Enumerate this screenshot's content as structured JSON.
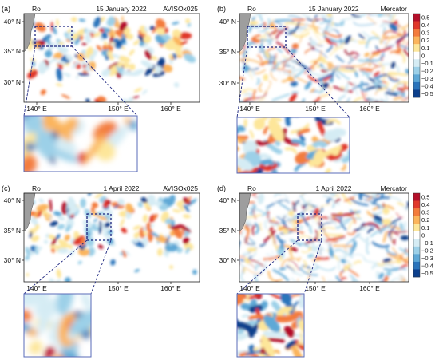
{
  "panels": [
    {
      "letter": "(a)",
      "variable": "Ro",
      "date": "15 January 2022",
      "source": "AVISOx025",
      "lat_labels": [
        "40° N",
        "35° N",
        "30° N"
      ],
      "lon_labels": [
        "140° E",
        "150° E",
        "160° E"
      ]
    },
    {
      "letter": "(b)",
      "variable": "Ro",
      "date": "15 January 2022",
      "source": "Mercator",
      "lat_labels": [
        "40° N",
        "35° N",
        "30° N"
      ],
      "lon_labels": [
        "140° E",
        "150° E",
        "160° E"
      ]
    },
    {
      "letter": "(c)",
      "variable": "Ro",
      "date": "1 April 2022",
      "source": "AVISOx025",
      "lat_labels": [
        "40° N",
        "35° N",
        "30° N"
      ],
      "lon_labels": [
        "140° E",
        "150° E",
        "160° E"
      ]
    },
    {
      "letter": "(d)",
      "variable": "Ro",
      "date": "1 April 2022",
      "source": "Mercator",
      "lat_labels": [
        "40° N",
        "35° N",
        "30° N"
      ],
      "lon_labels": [
        "140° E",
        "150° E",
        "160° E"
      ]
    }
  ],
  "colorbar": {
    "ticks": [
      "0.5",
      "0.4",
      "0.3",
      "0.2",
      "0.1",
      "0",
      "−0.1",
      "−0.2",
      "−0.3",
      "−0.4",
      "−0.5"
    ],
    "colors": [
      "#b4102a",
      "#e0382c",
      "#f37b3c",
      "#fbb45c",
      "#fde69a",
      "#ffffff",
      "#d5ecf4",
      "#9cd0e8",
      "#5ea8d6",
      "#2b74bb",
      "#0c3f8c"
    ]
  },
  "colors": {
    "land": "#9e9e9e",
    "zoom_box": "#1a237e",
    "inset_border": "#5a6bb8"
  }
}
